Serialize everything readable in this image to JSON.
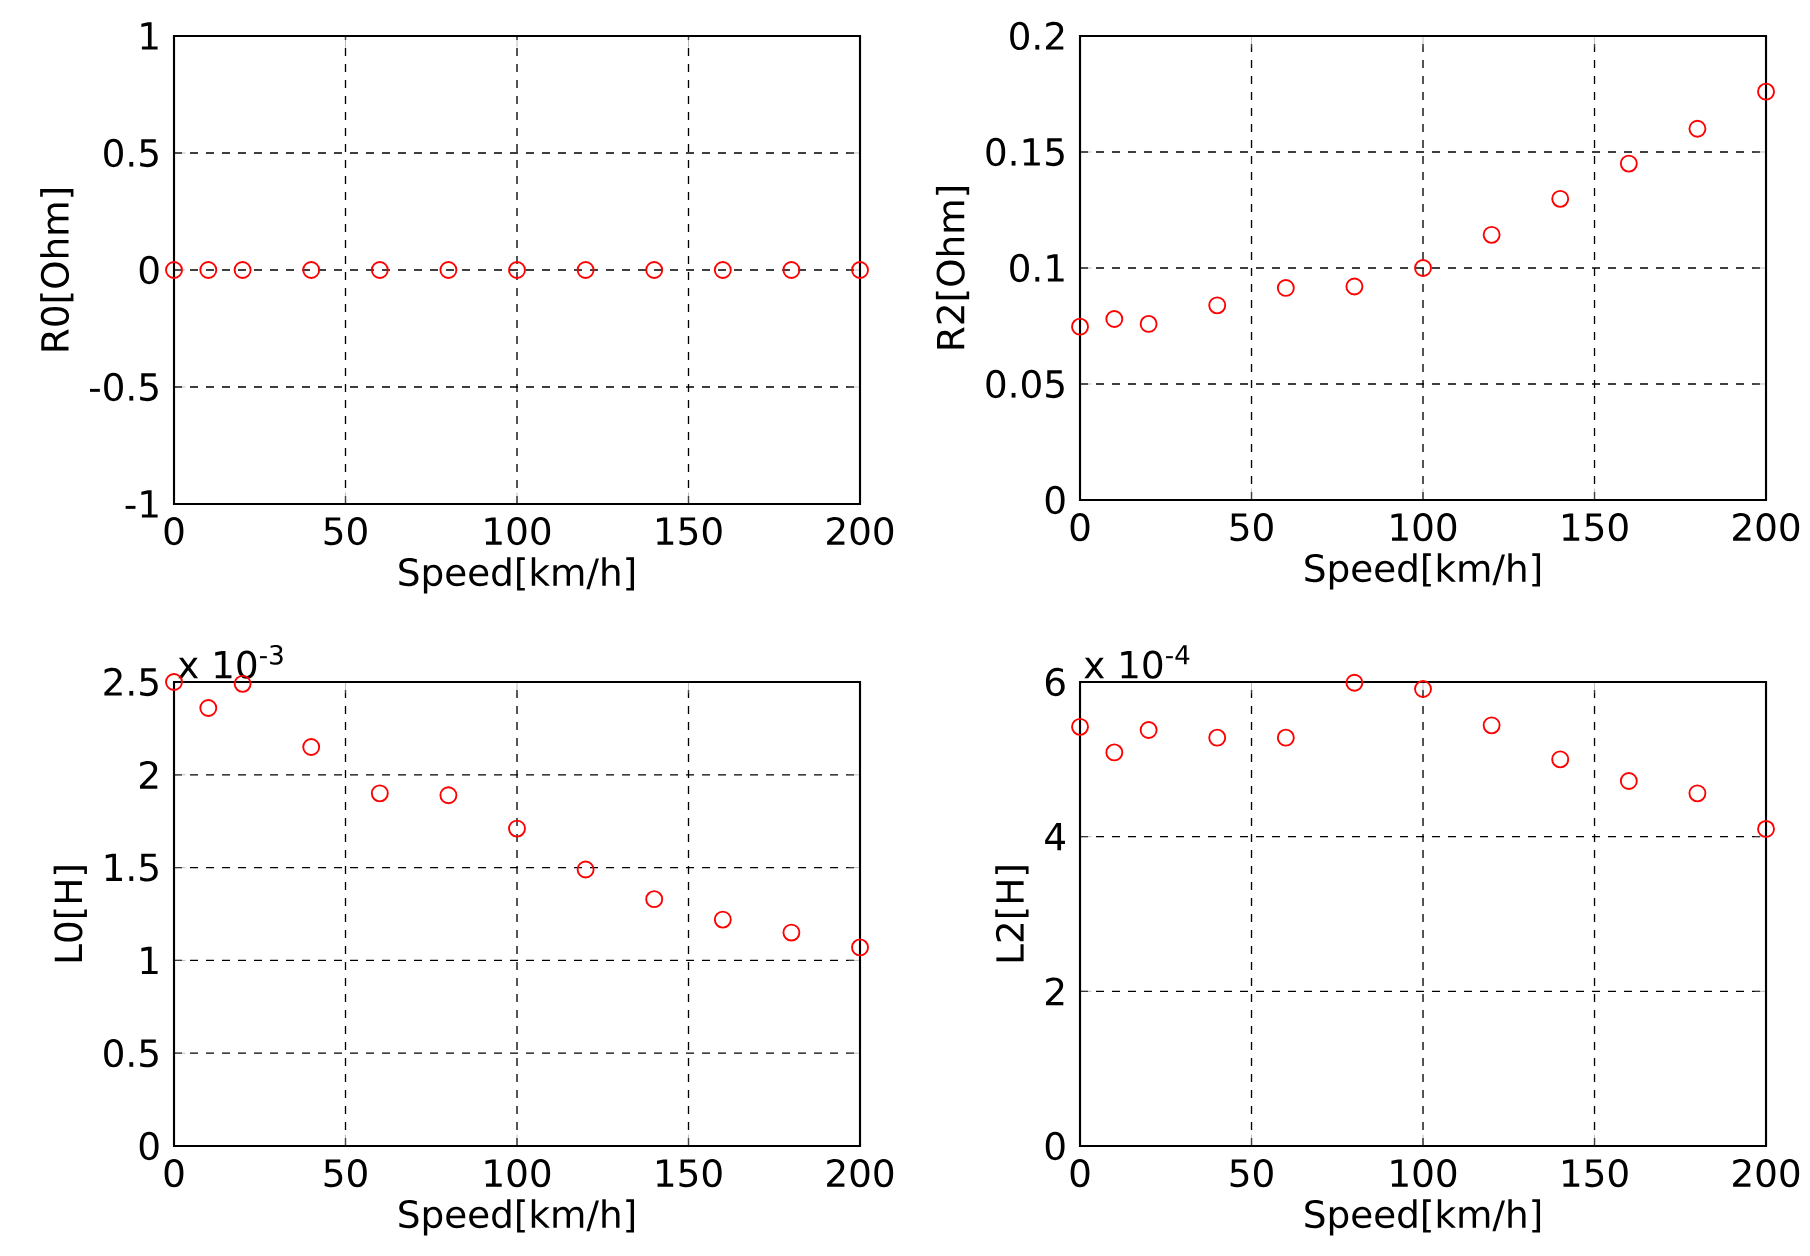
{
  "chart_data": [
    {
      "type": "scatter",
      "xlabel": "Speed[km/h]",
      "ylabel": "R0[Ohm]",
      "x": [
        0,
        10,
        20,
        40,
        60,
        80,
        100,
        120,
        140,
        160,
        180,
        200
      ],
      "xlim": [
        0,
        200
      ],
      "xticks": [
        0,
        50,
        100,
        150,
        200
      ],
      "ylim": [
        -1,
        1
      ],
      "yticks": [
        -1,
        -0.5,
        0,
        0.5,
        1
      ],
      "grid": true,
      "marker": "circle",
      "series": [
        {
          "color": "#ff0000",
          "values": [
            0,
            0,
            0,
            0,
            0,
            0,
            0,
            0,
            0,
            0,
            0,
            0
          ]
        }
      ]
    },
    {
      "type": "scatter",
      "xlabel": "Speed[km/h]",
      "ylabel": "R2[Ohm]",
      "x": [
        0,
        10,
        20,
        40,
        60,
        80,
        100,
        120,
        140,
        160,
        180,
        200
      ],
      "xlim": [
        0,
        200
      ],
      "xticks": [
        0,
        50,
        100,
        150,
        200
      ],
      "ylim": [
        0,
        0.2
      ],
      "yticks": [
        0,
        0.05,
        0.1,
        0.15,
        0.2
      ],
      "grid": true,
      "marker": "circle",
      "series": [
        {
          "color": "#ff0000",
          "values": [
            0.0747,
            0.078,
            0.0759,
            0.0839,
            0.0914,
            0.092,
            0.1,
            0.1143,
            0.1298,
            0.145,
            0.16,
            0.176
          ]
        }
      ]
    },
    {
      "type": "scatter",
      "xlabel": "Speed[km/h]",
      "ylabel": "L0[H]",
      "annotations": [
        "x 10$^{-3}$"
      ],
      "x": [
        0,
        10,
        20,
        40,
        60,
        80,
        100,
        120,
        140,
        160,
        180,
        200
      ],
      "xlim": [
        0,
        200
      ],
      "xticks": [
        0,
        50,
        100,
        150,
        200
      ],
      "ylim": [
        0,
        2.5
      ],
      "yticks": [
        0,
        0.5,
        1,
        1.5,
        2,
        2.5
      ],
      "grid": true,
      "marker": "circle",
      "series": [
        {
          "color": "#ff0000",
          "values": [
            2.5,
            2.36,
            2.49,
            2.15,
            1.9,
            1.89,
            1.71,
            1.49,
            1.33,
            1.22,
            1.15,
            1.07
          ]
        }
      ]
    },
    {
      "type": "scatter",
      "xlabel": "Speed[km/h]",
      "ylabel": "L2[H]",
      "annotations": [
        "x 10$^{-4}$"
      ],
      "x": [
        0,
        10,
        20,
        40,
        60,
        80,
        100,
        120,
        140,
        160,
        180,
        200
      ],
      "xlim": [
        0,
        200
      ],
      "xticks": [
        0,
        50,
        100,
        150,
        200
      ],
      "ylim": [
        0,
        6
      ],
      "yticks": [
        0,
        2,
        4,
        6
      ],
      "grid": true,
      "marker": "circle",
      "series": [
        {
          "color": "#ff0000",
          "values": [
            5.42,
            5.09,
            5.38,
            5.28,
            5.28,
            5.99,
            5.91,
            5.44,
            5.0,
            4.72,
            4.56,
            4.1
          ]
        }
      ]
    }
  ]
}
